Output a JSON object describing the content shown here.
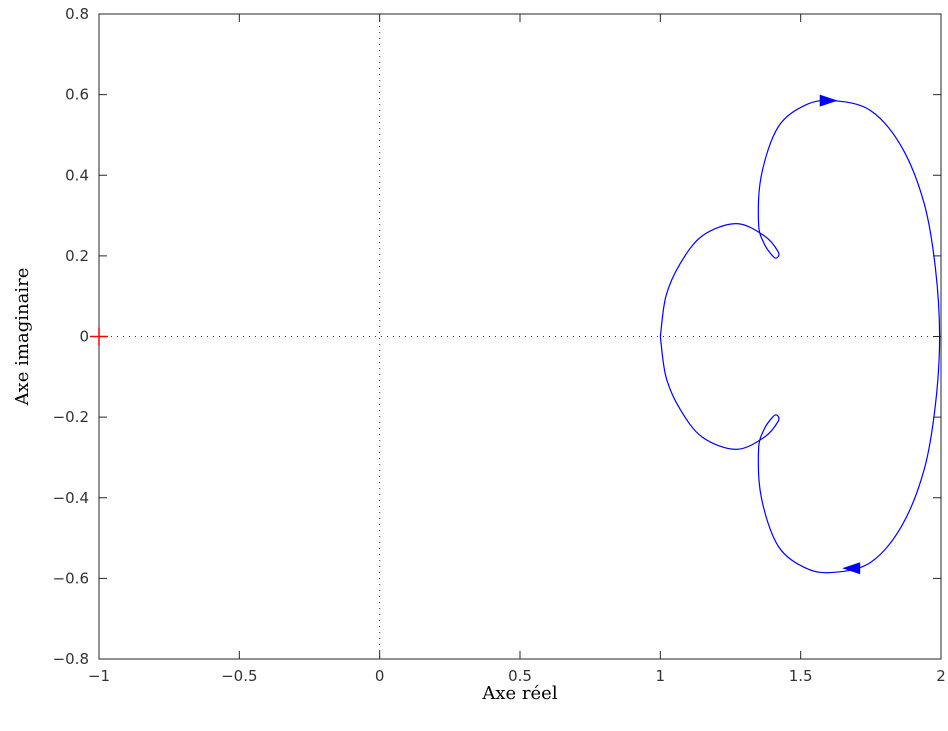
{
  "chart_data": {
    "type": "line",
    "title": "",
    "xlabel": "Axe réel",
    "ylabel": "Axe imaginaire",
    "xlim": [
      -1,
      2
    ],
    "ylim": [
      -0.8,
      0.8
    ],
    "xticks": [
      -1,
      -0.5,
      0,
      0.5,
      1,
      1.5,
      2
    ],
    "yticks": [
      -0.8,
      -0.6,
      -0.4,
      -0.2,
      0,
      0.2,
      0.4,
      0.6,
      0.8
    ],
    "xtick_labels": [
      "−1",
      "−0.5",
      "0",
      "0.5",
      "1",
      "1.5",
      "2"
    ],
    "ytick_labels": [
      "−0.8",
      "−0.6",
      "−0.4",
      "−0.2",
      "0",
      "0.2",
      "0.4",
      "0.6",
      "0.8"
    ],
    "grid": false,
    "reference_lines": {
      "x": 0,
      "y": 0,
      "style": "dotted"
    },
    "critical_point": {
      "x": -1,
      "y": 0,
      "marker": "+",
      "color": "#ff0000"
    },
    "series": [
      {
        "color": "#0000ff",
        "points": [
          [
            1.0,
            0.0
          ],
          [
            1.02,
            0.1
          ],
          [
            1.07,
            0.18
          ],
          [
            1.15,
            0.25
          ],
          [
            1.27,
            0.28
          ],
          [
            1.37,
            0.25
          ],
          [
            1.42,
            0.21
          ],
          [
            1.415,
            0.195
          ],
          [
            1.4,
            0.2
          ],
          [
            1.37,
            0.23
          ],
          [
            1.35,
            0.28
          ],
          [
            1.36,
            0.4
          ],
          [
            1.42,
            0.52
          ],
          [
            1.52,
            0.575
          ],
          [
            1.62,
            0.585
          ],
          [
            1.75,
            0.56
          ],
          [
            1.86,
            0.47
          ],
          [
            1.94,
            0.33
          ],
          [
            1.98,
            0.17
          ],
          [
            1.995,
            0.0
          ],
          [
            1.98,
            -0.17
          ],
          [
            1.94,
            -0.33
          ],
          [
            1.86,
            -0.47
          ],
          [
            1.75,
            -0.56
          ],
          [
            1.62,
            -0.585
          ],
          [
            1.52,
            -0.575
          ],
          [
            1.42,
            -0.52
          ],
          [
            1.36,
            -0.4
          ],
          [
            1.35,
            -0.28
          ],
          [
            1.37,
            -0.23
          ],
          [
            1.4,
            -0.2
          ],
          [
            1.415,
            -0.195
          ],
          [
            1.42,
            -0.21
          ],
          [
            1.37,
            -0.25
          ],
          [
            1.27,
            -0.28
          ],
          [
            1.15,
            -0.25
          ],
          [
            1.07,
            -0.18
          ],
          [
            1.02,
            -0.1
          ],
          [
            1.0,
            0.0
          ]
        ],
        "arrows": [
          {
            "x": 1.6,
            "y": 0.585,
            "direction": "right"
          },
          {
            "x": 1.68,
            "y": -0.575,
            "direction": "left"
          }
        ]
      }
    ]
  }
}
